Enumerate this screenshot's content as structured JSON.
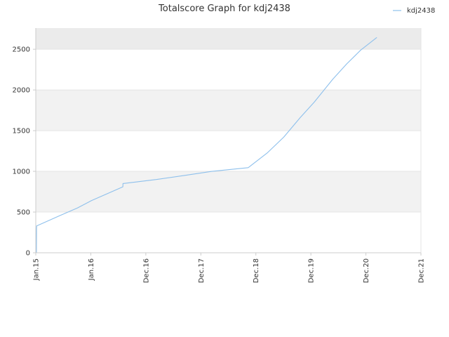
{
  "chart_data": {
    "type": "line",
    "title": "Totalscore Graph for kdj2438",
    "xlabel": "",
    "ylabel": "",
    "x_ticks": [
      "Jan.15",
      "Jan.16",
      "Dec.16",
      "Dec.17",
      "Dec.18",
      "Dec.19",
      "Dec.20",
      "Dec.21"
    ],
    "xlim": [
      "2015-01-01",
      "2021-12-01"
    ],
    "ylim": [
      0,
      2760
    ],
    "y_ticks": [
      0,
      500,
      1000,
      1500,
      2000,
      2500
    ],
    "grid": true,
    "legend": "top-right",
    "colors": {
      "series": "#8ec0ec",
      "band": "#f2f2f2",
      "band_top": "#ebebeb",
      "axis": "#cccccc"
    },
    "series": [
      {
        "name": "kdj2438",
        "points": [
          [
            "2015-01-05",
            0
          ],
          [
            "2015-01-06",
            300
          ],
          [
            "2015-01-07",
            330
          ],
          [
            "2015-02-01",
            350
          ],
          [
            "2015-06-01",
            450
          ],
          [
            "2015-10-01",
            550
          ],
          [
            "2016-01-01",
            640
          ],
          [
            "2016-05-01",
            740
          ],
          [
            "2016-07-25",
            810
          ],
          [
            "2016-07-26",
            850
          ],
          [
            "2016-10-01",
            865
          ],
          [
            "2017-03-01",
            900
          ],
          [
            "2017-09-01",
            950
          ],
          [
            "2018-03-01",
            1000
          ],
          [
            "2018-10-25",
            1045
          ],
          [
            "2019-03-01",
            1230
          ],
          [
            "2019-06-15",
            1420
          ],
          [
            "2019-10-01",
            1660
          ],
          [
            "2020-01-01",
            1850
          ],
          [
            "2020-05-01",
            2130
          ],
          [
            "2020-08-01",
            2320
          ],
          [
            "2020-11-01",
            2490
          ],
          [
            "2021-02-15",
            2645
          ]
        ]
      }
    ]
  }
}
